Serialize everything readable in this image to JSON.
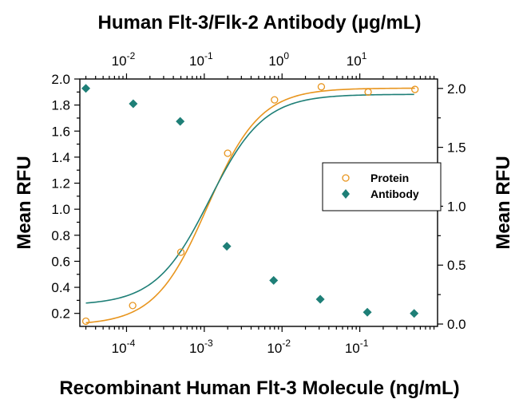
{
  "chart_data": {
    "type": "scatter",
    "title": "Human Flt-3/Flk-2 Antibody (µg/mL)",
    "xlabel": "Recombinant Human Flt-3 Molecule (ng/mL)",
    "ylabel_left": "Mean RFU",
    "ylabel_right": "Mean RFU",
    "x_scale": "log",
    "x_bottom_range": [
      2.51e-05,
      1.0
    ],
    "x_bottom_ticks": [
      0.0001,
      0.001,
      0.01,
      0.1
    ],
    "x_bottom_tick_labels": [
      {
        "base": "10",
        "exp": "-4"
      },
      {
        "base": "10",
        "exp": "-3"
      },
      {
        "base": "10",
        "exp": "-2"
      },
      {
        "base": "10",
        "exp": "-1"
      }
    ],
    "x_top_range": [
      0.00251,
      100.0
    ],
    "x_top_ticks": [
      0.01,
      0.1,
      1,
      10
    ],
    "x_top_tick_labels": [
      {
        "base": "10",
        "exp": "-2"
      },
      {
        "base": "10",
        "exp": "-1"
      },
      {
        "base": "10",
        "exp": "0"
      },
      {
        "base": "10",
        "exp": "1"
      }
    ],
    "y_left_range": [
      0.1,
      2.0
    ],
    "y_left_ticks": [
      0.2,
      0.4,
      0.6,
      0.8,
      1.0,
      1.2,
      1.4,
      1.6,
      1.8,
      2.0
    ],
    "y_left_tick_labels": [
      "0.2",
      "0.4",
      "0.6",
      "0.8",
      "1.0",
      "1.2",
      "1.4",
      "1.6",
      "1.8",
      "2.0"
    ],
    "y_right_range": [
      -0.02,
      2.08
    ],
    "y_right_ticks": [
      0.0,
      0.5,
      1.0,
      1.5,
      2.0
    ],
    "y_right_tick_labels": [
      "0.0",
      "0.5",
      "1.0",
      "1.5",
      "2.0"
    ],
    "legend_position": "right-middle",
    "grid": false,
    "series": [
      {
        "name": "Protein",
        "marker": "open-circle",
        "color": "#e8951e",
        "axis": "bottom-left",
        "x": [
          3e-05,
          0.00012,
          0.0005,
          0.002,
          0.008,
          0.032,
          0.128,
          0.512
        ],
        "y": [
          0.14,
          0.26,
          0.67,
          1.43,
          1.84,
          1.94,
          1.9,
          1.92
        ],
        "fit": {
          "bottom": 0.11,
          "top": 1.93,
          "ec50": 0.0011,
          "hill": 1.28
        }
      },
      {
        "name": "Antibody",
        "marker": "filled-diamond",
        "color": "#1e7f77",
        "axis": "top-right",
        "x": [
          0.003,
          0.0122,
          0.049,
          0.195,
          0.78,
          3.1,
          12.5,
          50
        ],
        "y": [
          2.0,
          1.87,
          1.72,
          0.66,
          0.37,
          0.21,
          0.1,
          0.09
        ],
        "fit": {
          "top": 1.95,
          "bottom": 0.16,
          "ec50": 0.117,
          "hill": 1.25
        }
      }
    ]
  }
}
